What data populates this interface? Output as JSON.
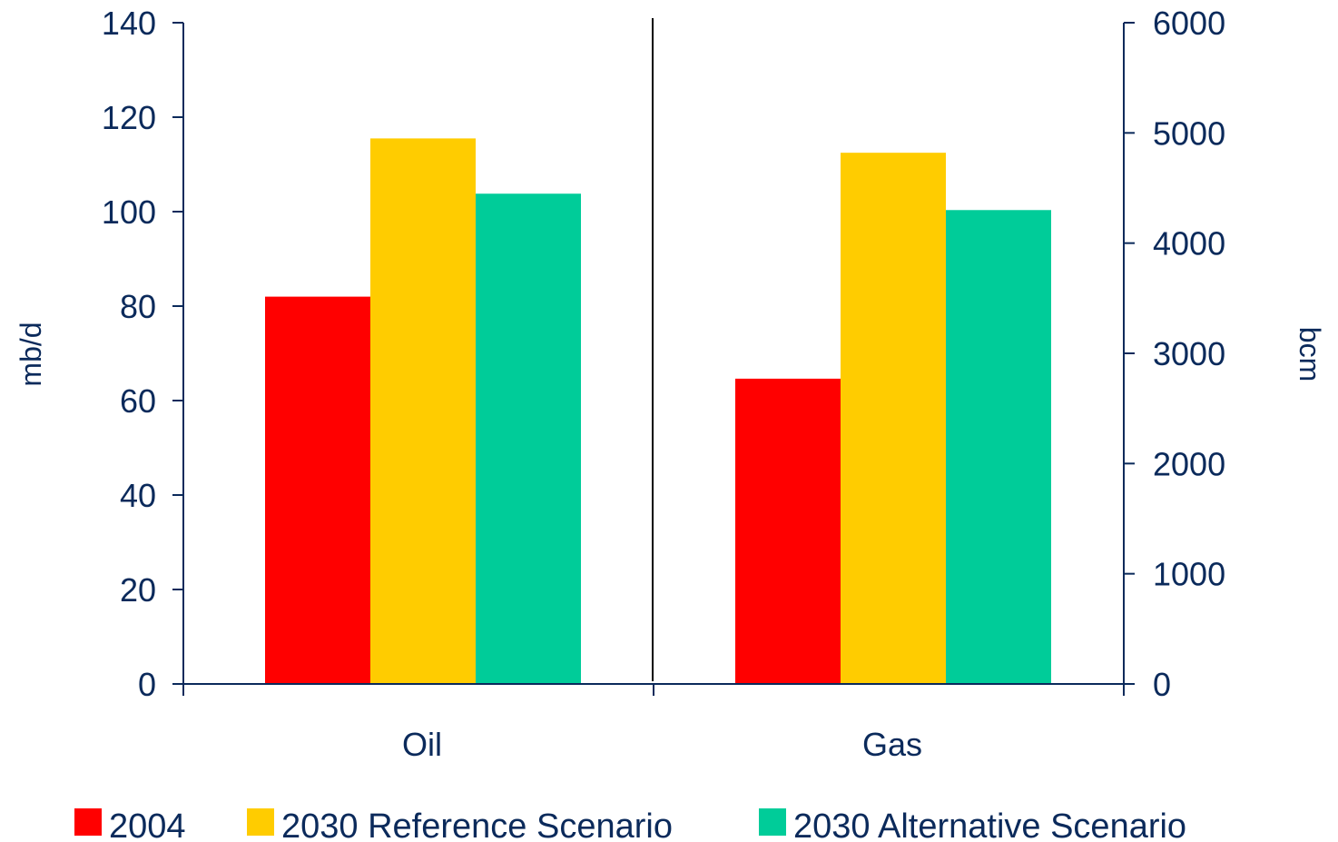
{
  "chart_data": {
    "type": "bar",
    "categories": [
      "Oil",
      "Gas"
    ],
    "series": [
      {
        "name": "2004",
        "values": [
          82,
          2770
        ],
        "color": "#ff0000"
      },
      {
        "name": "2030 Reference Scenario",
        "values": [
          115.5,
          4820
        ],
        "color": "#ffcc00"
      },
      {
        "name": "2030 Alternative Scenario",
        "values": [
          103.8,
          4300
        ],
        "color": "#00cc99"
      }
    ],
    "category_axis": [
      "left",
      "right"
    ],
    "left_axis": {
      "label": "mb/d",
      "ylim": [
        0,
        140
      ],
      "ticks": [
        "0",
        "20",
        "40",
        "60",
        "80",
        "100",
        "120",
        "140"
      ]
    },
    "right_axis": {
      "label": "bcm",
      "ylim": [
        0,
        6000
      ],
      "ticks": [
        "0",
        "1000",
        "2000",
        "3000",
        "4000",
        "5000",
        "6000"
      ]
    },
    "grid": false,
    "legend_position": "bottom"
  }
}
